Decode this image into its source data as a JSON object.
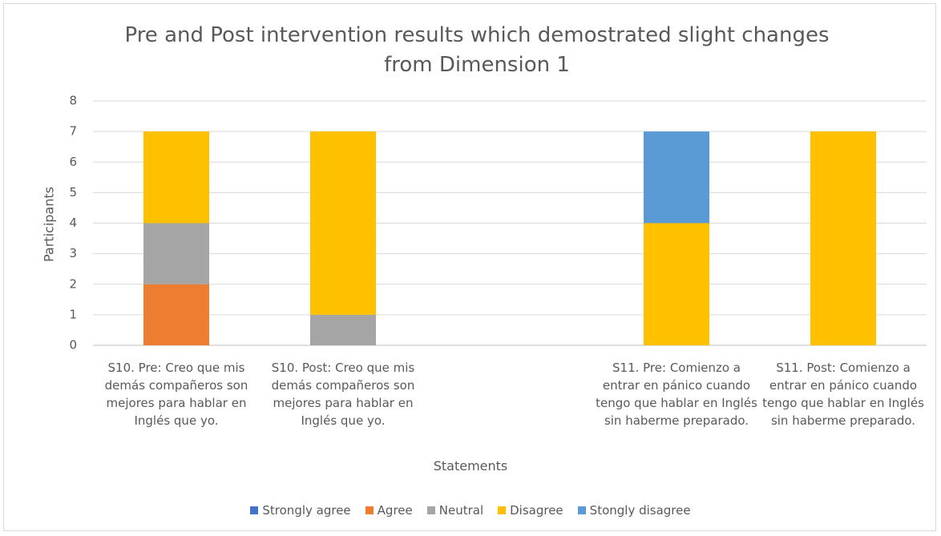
{
  "chart_data": {
    "type": "stacked_bar",
    "title": "Pre and Post intervention results which demostrated slight changes from Dimension 1",
    "x_label": "Statements",
    "y_label": "Participants",
    "categories": [
      "S10. Pre: Creo que mis demás compañeros son mejores para hablar en Inglés que yo.",
      "S10. Post: Creo que mis demás compañeros son mejores para hablar en Inglés que yo.",
      null,
      "S11. Pre: Comienzo a entrar en pánico cuando tengo que hablar en Inglés sin haberme preparado.",
      "S11. Post: Comienzo a entrar en pánico cuando tengo que hablar en Inglés sin haberme preparado."
    ],
    "series": [
      {
        "name": "Strongly agree",
        "color": "#4472c4",
        "values": [
          0,
          0,
          null,
          0,
          0
        ]
      },
      {
        "name": "Agree",
        "color": "#ed7d31",
        "values": [
          2,
          0,
          null,
          0,
          0
        ]
      },
      {
        "name": "Neutral",
        "color": "#a5a5a5",
        "values": [
          2,
          1,
          null,
          0,
          0
        ]
      },
      {
        "name": "Disagree",
        "color": "#ffc000",
        "values": [
          3,
          6,
          null,
          4,
          7
        ]
      },
      {
        "name": "Stongly disagree",
        "color": "#5b9bd5",
        "values": [
          0,
          0,
          null,
          3,
          0
        ]
      }
    ],
    "ylim": [
      0,
      8
    ],
    "yticks": [
      0,
      1,
      2,
      3,
      4,
      5,
      6,
      7,
      8
    ],
    "grid": true,
    "legend": "bottom"
  }
}
